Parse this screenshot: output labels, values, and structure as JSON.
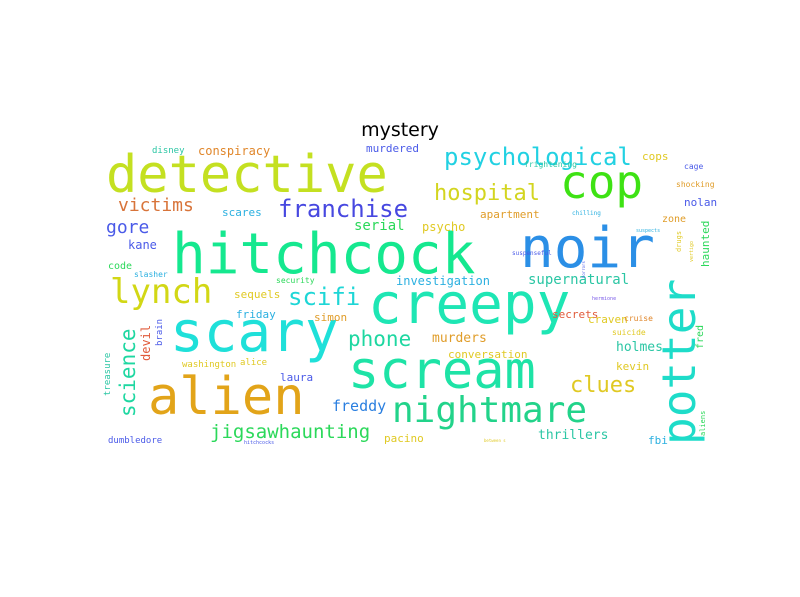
{
  "title": "mystery",
  "chart_data": {
    "type": "wordcloud",
    "title": "mystery",
    "words": [
      {
        "text": "hitchcock",
        "weight": 60,
        "color": "#15e88f"
      },
      {
        "text": "detective",
        "weight": 55,
        "color": "#c4e021"
      },
      {
        "text": "creepy",
        "weight": 58,
        "color": "#1ee6b4"
      },
      {
        "text": "noir",
        "weight": 58,
        "color": "#2b8fe6"
      },
      {
        "text": "scream",
        "weight": 55,
        "color": "#1ee3a6"
      },
      {
        "text": "scary",
        "weight": 55,
        "color": "#1fe0d9"
      },
      {
        "text": "alien",
        "weight": 55,
        "color": "#e2a419"
      },
      {
        "text": "cop",
        "weight": 45,
        "color": "#3ee214"
      },
      {
        "text": "potter",
        "weight": 45,
        "color": "#1edcc9"
      },
      {
        "text": "nightmare",
        "weight": 37,
        "color": "#22d38a"
      },
      {
        "text": "lynch",
        "weight": 35,
        "color": "#d2d715"
      },
      {
        "text": "psychological",
        "weight": 27,
        "color": "#22d1e2"
      },
      {
        "text": "franchise",
        "weight": 25,
        "color": "#4748e0"
      },
      {
        "text": "scifi",
        "weight": 25,
        "color": "#1ed6d6"
      },
      {
        "text": "hospital",
        "weight": 22,
        "color": "#d3d520"
      },
      {
        "text": "phone",
        "weight": 22,
        "color": "#1ed7a1"
      },
      {
        "text": "science",
        "weight": 22,
        "color": "#1ed7a1"
      },
      {
        "text": "jigsawhaunting",
        "weight": 20,
        "color": "#2bd85a"
      },
      {
        "text": "clues",
        "weight": 22,
        "color": "#e0c923"
      },
      {
        "text": "victims",
        "weight": 18,
        "color": "#d8743a"
      },
      {
        "text": "gore",
        "weight": 18,
        "color": "#4a5ae8"
      },
      {
        "text": "freddy",
        "weight": 16,
        "color": "#2a7fe0"
      },
      {
        "text": "supernatural",
        "weight": 14,
        "color": "#2bc6a4"
      },
      {
        "text": "serial",
        "weight": 14,
        "color": "#2bd85a"
      },
      {
        "text": "thrillers",
        "weight": 14,
        "color": "#2bc6a4"
      },
      {
        "text": "holmes",
        "weight": 14,
        "color": "#2bc6a4"
      },
      {
        "text": "murders",
        "weight": 14,
        "color": "#e09d2a"
      },
      {
        "text": "investigation",
        "weight": 12,
        "color": "#2bb0e0"
      },
      {
        "text": "conspiracy",
        "weight": 12,
        "color": "#e0862a"
      },
      {
        "text": "murdered",
        "weight": 11,
        "color": "#4a5ae8"
      },
      {
        "text": "cops",
        "weight": 11,
        "color": "#e0c923"
      },
      {
        "text": "kane",
        "weight": 12,
        "color": "#4a5ae8"
      },
      {
        "text": "psycho",
        "weight": 12,
        "color": "#e0c923"
      },
      {
        "text": "secrets",
        "weight": 11,
        "color": "#e05a3a"
      },
      {
        "text": "scares",
        "weight": 11,
        "color": "#2bb0e0"
      },
      {
        "text": "apartment",
        "weight": 11,
        "color": "#e09d2a"
      },
      {
        "text": "nolan",
        "weight": 11,
        "color": "#4a5ae8"
      },
      {
        "text": "devil",
        "weight": 12,
        "color": "#e05a3a"
      },
      {
        "text": "craven",
        "weight": 11,
        "color": "#e0c923"
      },
      {
        "text": "laura",
        "weight": 11,
        "color": "#4a5ae8"
      },
      {
        "text": "simon",
        "weight": 11,
        "color": "#e09d2a"
      },
      {
        "text": "friday",
        "weight": 11,
        "color": "#2bb0e0"
      },
      {
        "text": "sequels",
        "weight": 11,
        "color": "#e0c923"
      },
      {
        "text": "conversation",
        "weight": 11,
        "color": "#e0c923"
      },
      {
        "text": "kevin",
        "weight": 11,
        "color": "#e0c923"
      },
      {
        "text": "pacino",
        "weight": 11,
        "color": "#e0c923"
      },
      {
        "text": "fbi",
        "weight": 11,
        "color": "#2bb0e0"
      },
      {
        "text": "haunted",
        "weight": 11,
        "color": "#2bd85a"
      },
      {
        "text": "fred",
        "weight": 10,
        "color": "#2bd85a"
      },
      {
        "text": "code",
        "weight": 10,
        "color": "#2bd85a"
      },
      {
        "text": "zone",
        "weight": 10,
        "color": "#e09d2a"
      },
      {
        "text": "brain",
        "weight": 9,
        "color": "#4a5ae8"
      },
      {
        "text": "alice",
        "weight": 9,
        "color": "#e0c923"
      },
      {
        "text": "disney",
        "weight": 9,
        "color": "#2bc6a4"
      },
      {
        "text": "dumbledore",
        "weight": 9,
        "color": "#4a5ae8"
      },
      {
        "text": "treasure",
        "weight": 9,
        "color": "#2bc6a4"
      },
      {
        "text": "washington",
        "weight": 9,
        "color": "#e0c923"
      },
      {
        "text": "security",
        "weight": 8,
        "color": "#2bd85a"
      },
      {
        "text": "slasher",
        "weight": 8,
        "color": "#2bb0e0"
      },
      {
        "text": "suicide",
        "weight": 8,
        "color": "#e0c923"
      },
      {
        "text": "cruise",
        "weight": 8,
        "color": "#e0862a"
      },
      {
        "text": "cage",
        "weight": 8,
        "color": "#4a5ae8"
      },
      {
        "text": "shocking",
        "weight": 8,
        "color": "#e09d2a"
      },
      {
        "text": "frightening",
        "weight": 8,
        "color": "#2bc6a4"
      },
      {
        "text": "drugs",
        "weight": 7,
        "color": "#e0c923"
      },
      {
        "text": "aliens",
        "weight": 7,
        "color": "#2bd85a"
      },
      {
        "text": "chilling",
        "weight": 6,
        "color": "#2bb0e0"
      },
      {
        "text": "suspenseful",
        "weight": 6,
        "color": "#4a5ae8"
      },
      {
        "text": "suspects",
        "weight": 5,
        "color": "#2bb0e0"
      },
      {
        "text": "vertigo",
        "weight": 5,
        "color": "#e0c923"
      },
      {
        "text": "hitchcocks",
        "weight": 5,
        "color": "#4a5ae8"
      },
      {
        "text": "hermione",
        "weight": 5,
        "color": "#7a5ae8"
      },
      {
        "text": "between s",
        "weight": 4,
        "color": "#e0c923"
      },
      {
        "text": "horrors",
        "weight": 4,
        "color": "#4a5ae8"
      }
    ]
  }
}
